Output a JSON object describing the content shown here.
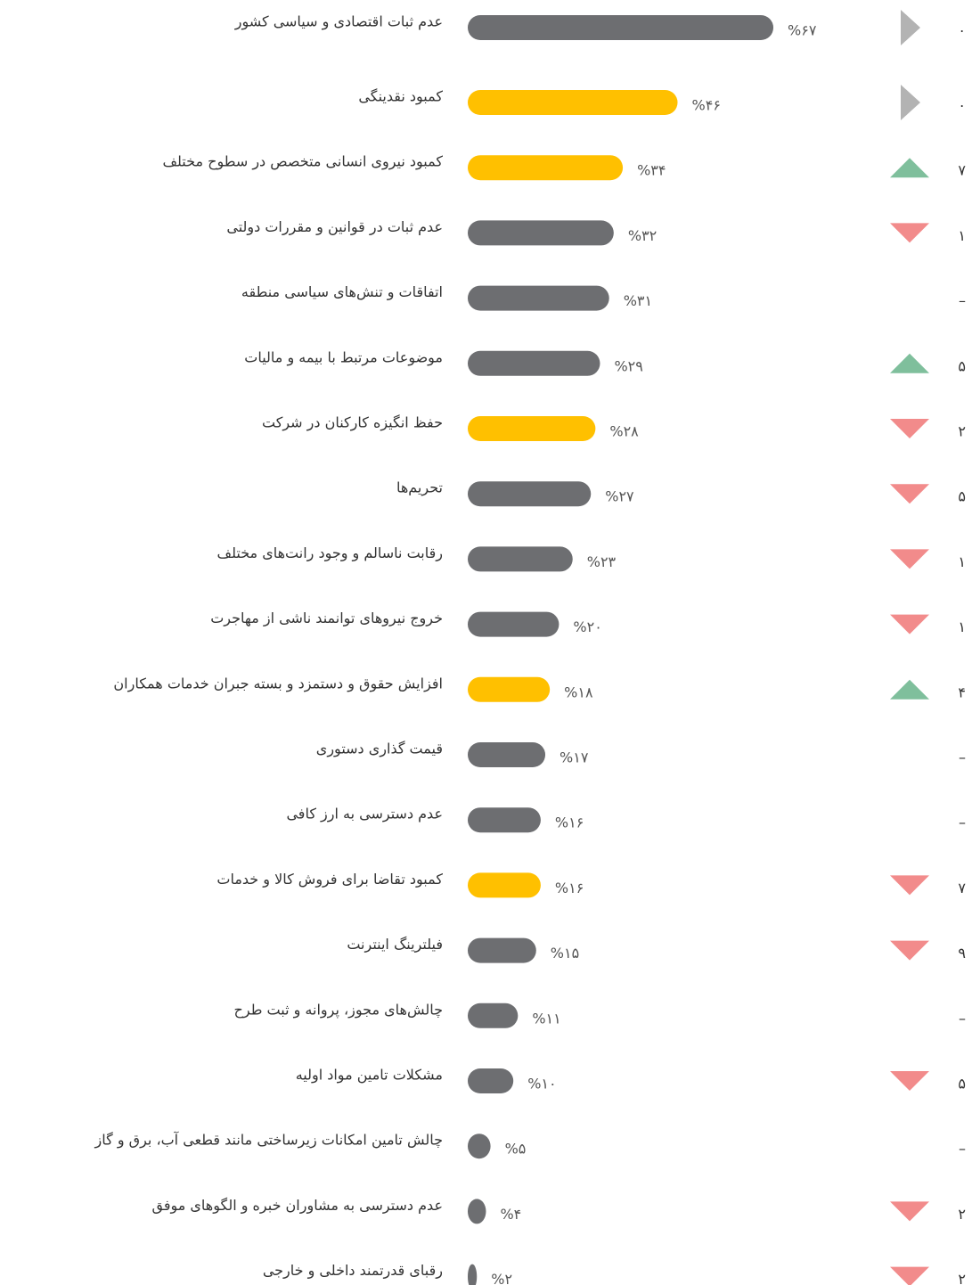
{
  "chart_data": {
    "type": "bar",
    "orientation": "horizontal",
    "categories": [
      "عدم ثبات اقتصادی و سیاسی کشور",
      "کمبود نقدینگی",
      "کمبود نیروی انسانی متخصص در سطوح مختلف",
      "عدم ثبات در قوانین و مقررات دولتی",
      "اتفاقات و تنش‌های سیاسی منطقه",
      "موضوعات مرتبط با بیمه و مالیات",
      "حفظ انگیزه کارکنان در شرکت",
      "تحریم‌ها",
      "رقابت ناسالم و وجود رانت‌های مختلف",
      "خروج نیروهای توانمند ناشی از مهاجرت",
      "افزایش حقوق و دستمزد و بسته جبران خدمات همکاران",
      "قیمت گذاری دستوری",
      "عدم دسترسی به ارز کافی",
      "کمبود تقاضا برای فروش کالا و خدمات",
      "فیلترینگ اینترنت",
      "چالش‌های مجوز، پروانه و ثبت طرح",
      "مشکلات تامین مواد اولیه",
      "چالش تامین امکانات زیرساختی مانند قطعی آب، برق و گاز",
      "عدم دسترسی به مشاوران خبره و الگوهای موفق",
      "رقبای قدرتمند داخلی و خارجی"
    ],
    "values": [
      67,
      46,
      34,
      32,
      31,
      29,
      28,
      27,
      23,
      20,
      18,
      17,
      16,
      16,
      15,
      11,
      10,
      5,
      4,
      2
    ],
    "value_labels": [
      "%۶۷",
      "%۴۶",
      "%۳۴",
      "%۳۲",
      "%۳۱",
      "%۲۹",
      "%۲۸",
      "%۲۷",
      "%۲۳",
      "%۲۰",
      "%۱۸",
      "%۱۷",
      "%۱۶",
      "%۱۶",
      "%۱۵",
      "%۱۱",
      "%۱۰",
      "%۵",
      "%۴",
      "%۲"
    ],
    "colors": [
      "#6d6e71",
      "#ffc000",
      "#ffc000",
      "#6d6e71",
      "#6d6e71",
      "#6d6e71",
      "#ffc000",
      "#6d6e71",
      "#6d6e71",
      "#6d6e71",
      "#ffc000",
      "#6d6e71",
      "#6d6e71",
      "#ffc000",
      "#6d6e71",
      "#6d6e71",
      "#6d6e71",
      "#6d6e71",
      "#6d6e71",
      "#6d6e71"
    ],
    "changes": [
      "۰",
      "۰",
      "۷",
      "۱",
      "–",
      "۵",
      "۲",
      "۵",
      "۱",
      "۱",
      "۴",
      "–",
      "–",
      "۷",
      "۹",
      "–",
      "۵",
      "–",
      "۲",
      "۲"
    ],
    "trends": [
      "same",
      "same",
      "up",
      "down",
      null,
      "up",
      "down",
      "down",
      "down",
      "down",
      "up",
      null,
      null,
      "down",
      "down",
      null,
      "down",
      null,
      "down",
      "down"
    ],
    "trend_colors": {
      "same": "#b3b3b3",
      "up": "#7fbf9c",
      "down": "#f28b8b"
    },
    "xlim": [
      0,
      100
    ]
  }
}
